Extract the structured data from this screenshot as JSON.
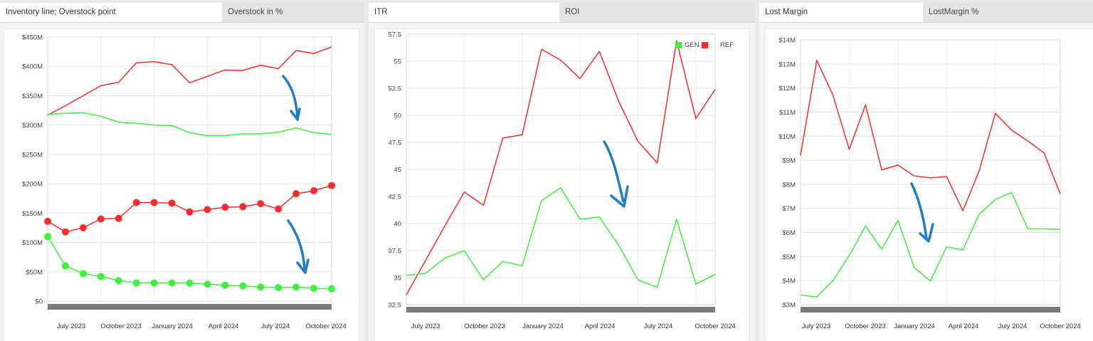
{
  "panels": [
    {
      "tabs": [
        {
          "label": "Inventory line; Overstock point",
          "active": true
        },
        {
          "label": "Overstock in %",
          "active": false
        }
      ],
      "chart_data": {
        "type": "line",
        "yticks": [
          "$0",
          "$50M",
          "$100M",
          "$150M",
          "$200M",
          "$250M",
          "$300M",
          "$350M",
          "$400M",
          "$450M"
        ],
        "ylim": [
          0,
          450
        ],
        "xlabels": [
          "July 2023",
          "October 2023",
          "January 2024",
          "April 2024",
          "July 2024",
          "October 2024"
        ],
        "grid": true,
        "series": [
          {
            "color": "#ff2a2a",
            "markers": false,
            "values": [
              317,
              333,
              350,
              367,
              373,
              406,
              408,
              403,
              372,
              383,
              394,
              393,
              402,
              396,
              427,
              422,
              433
            ]
          },
          {
            "color": "#3cf23c",
            "markers": false,
            "values": [
              318,
              320,
              321,
              315,
              305,
              303,
              300,
              299,
              287,
              282,
              282,
              285,
              285,
              288,
              295,
              287,
              284
            ]
          },
          {
            "color": "#ff2a2a",
            "markers": true,
            "values": [
              136,
              118,
              125,
              140,
              141,
              168,
              168,
              167,
              152,
              156,
              160,
              161,
              166,
              157,
              183,
              188,
              197
            ]
          },
          {
            "color": "#3cf23c",
            "markers": true,
            "values": [
              110,
              60,
              47,
              42,
              35,
              31,
              31,
              31,
              31,
              29,
              27,
              26,
              24,
              23,
              24,
              22,
              21
            ]
          }
        ],
        "annotations": [
          {
            "type": "arrow",
            "color": "#1f7dc8"
          },
          {
            "type": "arrow",
            "color": "#1f7dc8"
          }
        ]
      }
    },
    {
      "tabs": [
        {
          "label": "ITR",
          "active": true
        },
        {
          "label": "ROI",
          "active": false
        }
      ],
      "chart_data": {
        "type": "line",
        "yticks": [
          "32.5",
          "35",
          "37.5",
          "40",
          "42.5",
          "45",
          "47.5",
          "50",
          "52.5",
          "55",
          "57.5"
        ],
        "ylim": [
          32.5,
          57.5
        ],
        "xlabels": [
          "July 2023",
          "October 2023",
          "January 2024",
          "April 2024",
          "July 2024",
          "October 2024"
        ],
        "grid": true,
        "legend": {
          "position": "top-right",
          "items": [
            {
              "name": "GEN",
              "color": "#3cf23c"
            },
            {
              "name": "REF",
              "color": "#ff2a2a"
            }
          ]
        },
        "series": [
          {
            "name": "REF",
            "color": "#ff2a2a",
            "values": [
              33.4,
              36.6,
              39.8,
              42.9,
              41.7,
              47.9,
              48.2,
              56.1,
              55.1,
              53.4,
              55.9,
              51.3,
              47.6,
              45.6,
              56.9,
              49.7,
              52.4
            ]
          },
          {
            "name": "GEN",
            "color": "#3cf23c",
            "values": [
              35.2,
              35.4,
              36.8,
              37.5,
              34.8,
              36.5,
              36.1,
              42.1,
              43.3,
              40.4,
              40.6,
              38.0,
              34.8,
              34.1,
              40.4,
              34.4,
              35.3
            ]
          }
        ],
        "annotations": [
          {
            "type": "arrow",
            "color": "#1f7dc8"
          }
        ]
      }
    },
    {
      "tabs": [
        {
          "label": "Lost Margin",
          "active": true
        },
        {
          "label": "LostMargin %",
          "active": false
        }
      ],
      "chart_data": {
        "type": "line",
        "yticks": [
          "$3M",
          "$4M",
          "$5M",
          "$6M",
          "$7M",
          "$8M",
          "$9M",
          "$10M",
          "$11M",
          "$12M",
          "$13M",
          "$14M"
        ],
        "ylim": [
          3,
          14
        ],
        "xlabels": [
          "July 2023",
          "October 2023",
          "January 2024",
          "April 2024",
          "July 2024",
          "October 2024"
        ],
        "grid": true,
        "series": [
          {
            "color": "#ff2a2a",
            "values": [
              9.2,
              13.15,
              11.7,
              9.45,
              11.3,
              8.6,
              8.8,
              8.35,
              8.27,
              8.32,
              6.9,
              8.55,
              10.95,
              10.25,
              9.8,
              9.3,
              7.6
            ]
          },
          {
            "color": "#3cf23c",
            "values": [
              3.4,
              3.32,
              4.0,
              5.05,
              6.27,
              5.3,
              6.5,
              4.55,
              3.98,
              5.4,
              5.28,
              6.75,
              7.37,
              7.66,
              6.15,
              6.15,
              6.13
            ]
          }
        ],
        "annotations": [
          {
            "type": "arrow",
            "color": "#1f7dc8"
          }
        ]
      }
    }
  ]
}
